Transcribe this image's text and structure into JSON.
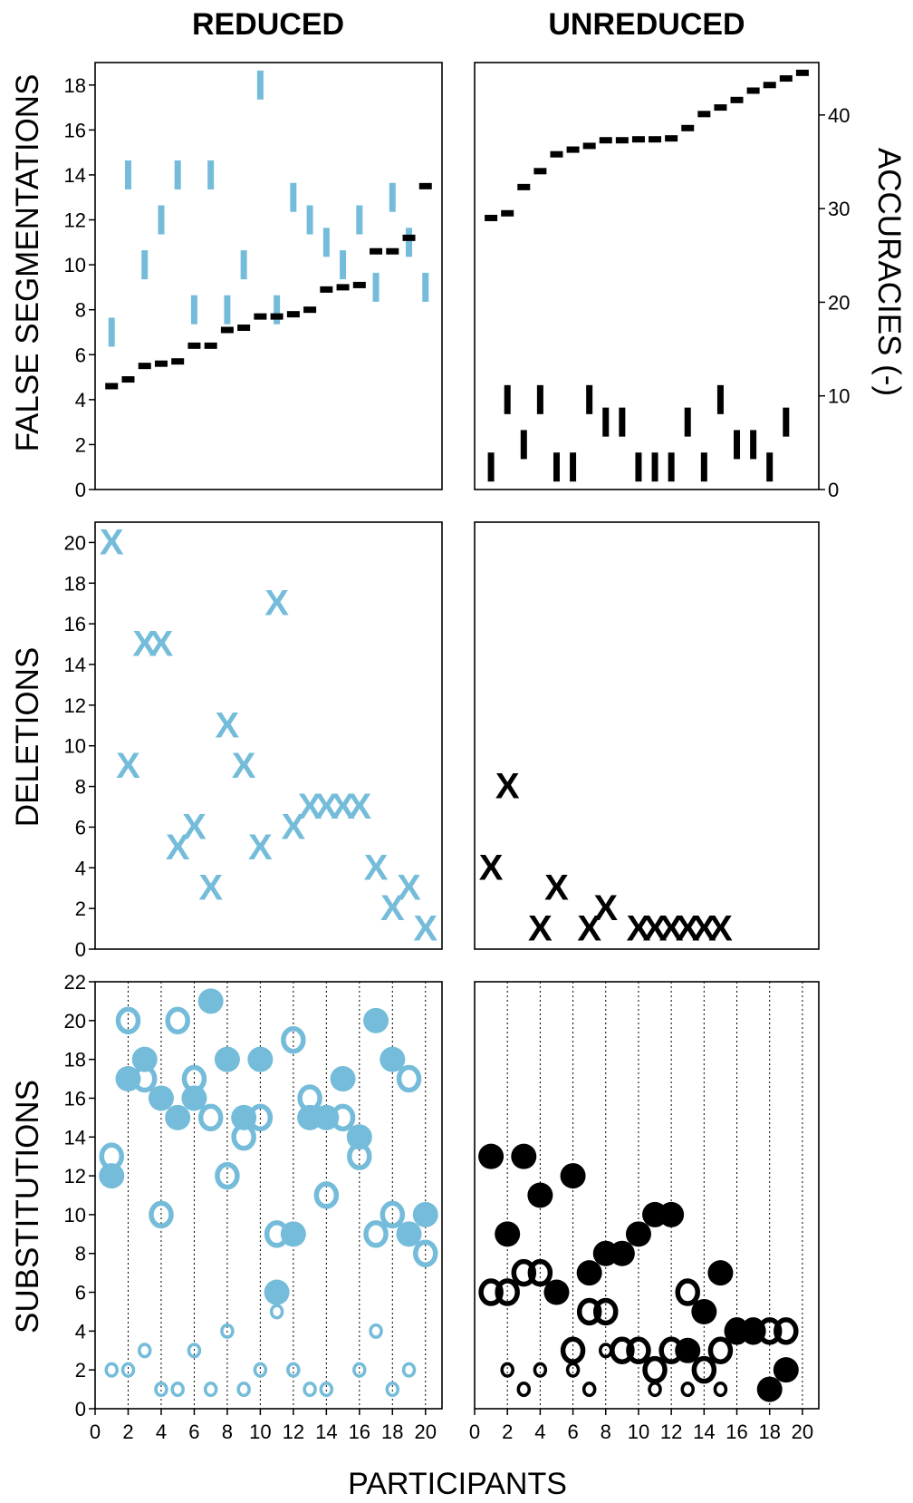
{
  "colors": {
    "reduced": "#74bcd9",
    "unreduced": "#000000",
    "axis": "#000000"
  },
  "titles": {
    "left": "REDUCED",
    "right": "UNREDUCED"
  },
  "x_axis": {
    "label": "PARTICIPANTS",
    "ticks": [
      "0",
      "2",
      "4",
      "6",
      "8",
      "10",
      "12",
      "14",
      "16",
      "18",
      "20"
    ]
  },
  "panels": {
    "row1": {
      "ylabel": "FALSE SEGMENTATIONS",
      "left_ticks": [
        "0",
        "2",
        "4",
        "6",
        "8",
        "10",
        "12",
        "14",
        "16",
        "18"
      ]
    },
    "row1_right": {
      "ylabel": "ACCURACIES (-)",
      "ticks": [
        "0",
        "10",
        "20",
        "30",
        "40"
      ]
    },
    "row2": {
      "ylabel": "DELETIONS",
      "ticks": [
        "0",
        "2",
        "4",
        "6",
        "8",
        "10",
        "12",
        "14",
        "16",
        "18",
        "20"
      ]
    },
    "row3": {
      "ylabel": "SUBSTITUTIONS",
      "ticks": [
        "0",
        "2",
        "4",
        "6",
        "8",
        "10",
        "12",
        "14",
        "16",
        "18",
        "20",
        "22"
      ]
    }
  },
  "chart_data": [
    {
      "type": "scatter",
      "panel": "reduced-false-segmentations",
      "xlim": [
        0,
        21
      ],
      "ylim": [
        0,
        19
      ],
      "ylabel": "FALSE SEGMENTATIONS",
      "bars_marker": "|",
      "bars": [
        [
          1,
          7
        ],
        [
          2,
          14
        ],
        [
          3,
          10
        ],
        [
          4,
          12
        ],
        [
          5,
          14
        ],
        [
          6,
          8
        ],
        [
          7,
          14
        ],
        [
          8,
          8
        ],
        [
          9,
          10
        ],
        [
          10,
          18
        ],
        [
          11,
          8
        ],
        [
          12,
          13
        ],
        [
          13,
          12
        ],
        [
          14,
          11
        ],
        [
          15,
          10
        ],
        [
          16,
          12
        ],
        [
          17,
          9
        ],
        [
          18,
          13
        ],
        [
          19,
          11
        ],
        [
          20,
          9
        ]
      ],
      "accuracy_marker": "-",
      "accuracy": [
        [
          1,
          4.6
        ],
        [
          2,
          4.9
        ],
        [
          3,
          5.5
        ],
        [
          4,
          5.6
        ],
        [
          5,
          5.7
        ],
        [
          6,
          6.4
        ],
        [
          7,
          6.4
        ],
        [
          8,
          7.1
        ],
        [
          9,
          7.2
        ],
        [
          10,
          7.7
        ],
        [
          11,
          7.7
        ],
        [
          12,
          7.8
        ],
        [
          13,
          8.0
        ],
        [
          14,
          8.9
        ],
        [
          15,
          9.0
        ],
        [
          16,
          9.1
        ],
        [
          17,
          10.6
        ],
        [
          18,
          10.6
        ],
        [
          19,
          11.2
        ],
        [
          20,
          13.5
        ]
      ]
    },
    {
      "type": "scatter",
      "panel": "unreduced-false-segmentations",
      "xlim": [
        0,
        21
      ],
      "ylim": [
        0,
        19
      ],
      "y2label": "ACCURACIES (-)",
      "y2lim": [
        0,
        45.6
      ],
      "bars_marker": "|",
      "bars": [
        [
          1,
          1
        ],
        [
          2,
          4
        ],
        [
          3,
          2
        ],
        [
          4,
          4
        ],
        [
          5,
          1
        ],
        [
          6,
          1
        ],
        [
          7,
          4
        ],
        [
          8,
          3
        ],
        [
          9,
          3
        ],
        [
          10,
          1
        ],
        [
          11,
          1
        ],
        [
          12,
          1
        ],
        [
          13,
          3
        ],
        [
          14,
          1
        ],
        [
          15,
          4
        ],
        [
          16,
          2
        ],
        [
          17,
          2
        ],
        [
          18,
          1
        ],
        [
          19,
          3
        ]
      ],
      "accuracy_marker": "-",
      "accuracy": [
        [
          1,
          29
        ],
        [
          2,
          29.5
        ],
        [
          3,
          32.3
        ],
        [
          4,
          34
        ],
        [
          5,
          35.8
        ],
        [
          6,
          36.3
        ],
        [
          7,
          36.7
        ],
        [
          8,
          37.3
        ],
        [
          9,
          37.3
        ],
        [
          10,
          37.4
        ],
        [
          11,
          37.4
        ],
        [
          12,
          37.5
        ],
        [
          13,
          38.6
        ],
        [
          14,
          40.1
        ],
        [
          15,
          40.8
        ],
        [
          16,
          41.6
        ],
        [
          17,
          42.6
        ],
        [
          18,
          43.2
        ],
        [
          19,
          43.9
        ],
        [
          20,
          44.5
        ]
      ]
    },
    {
      "type": "scatter",
      "panel": "reduced-deletions",
      "xlim": [
        0,
        21
      ],
      "ylim": [
        0,
        21
      ],
      "ylabel": "DELETIONS",
      "marker": "X",
      "points": [
        [
          1,
          20
        ],
        [
          2,
          9
        ],
        [
          3,
          15
        ],
        [
          4,
          15
        ],
        [
          5,
          5
        ],
        [
          6,
          6
        ],
        [
          7,
          3
        ],
        [
          8,
          11
        ],
        [
          9,
          9
        ],
        [
          10,
          5
        ],
        [
          11,
          17
        ],
        [
          12,
          6
        ],
        [
          13,
          7
        ],
        [
          14,
          7
        ],
        [
          15,
          7
        ],
        [
          16,
          7
        ],
        [
          17,
          4
        ],
        [
          18,
          2
        ],
        [
          19,
          3
        ],
        [
          20,
          1
        ]
      ]
    },
    {
      "type": "scatter",
      "panel": "unreduced-deletions",
      "xlim": [
        0,
        21
      ],
      "ylim": [
        0,
        21
      ],
      "marker": "X",
      "points": [
        [
          1,
          4
        ],
        [
          2,
          8
        ],
        [
          4,
          1
        ],
        [
          5,
          3
        ],
        [
          7,
          1
        ],
        [
          8,
          2
        ],
        [
          10,
          1
        ],
        [
          11,
          1
        ],
        [
          12,
          1
        ],
        [
          13,
          1
        ],
        [
          14,
          1
        ],
        [
          15,
          1
        ]
      ]
    },
    {
      "type": "scatter",
      "panel": "reduced-substitutions",
      "xlim": [
        0,
        21
      ],
      "ylim": [
        0,
        22
      ],
      "ylabel": "SUBSTITUTIONS",
      "marker": "O",
      "filled": [
        [
          1,
          12
        ],
        [
          2,
          17
        ],
        [
          3,
          18
        ],
        [
          4,
          16
        ],
        [
          5,
          15
        ],
        [
          6,
          16
        ],
        [
          7,
          21
        ],
        [
          8,
          18
        ],
        [
          9,
          15
        ],
        [
          10,
          18
        ],
        [
          11,
          6
        ],
        [
          12,
          9
        ],
        [
          13,
          15
        ],
        [
          14,
          15
        ],
        [
          15,
          17
        ],
        [
          16,
          14
        ],
        [
          17,
          20
        ],
        [
          18,
          18
        ],
        [
          19,
          9
        ],
        [
          20,
          10
        ]
      ],
      "open_large": [
        [
          1,
          13
        ],
        [
          2,
          20
        ],
        [
          3,
          17
        ],
        [
          4,
          10
        ],
        [
          5,
          20
        ],
        [
          6,
          17
        ],
        [
          7,
          15
        ],
        [
          8,
          12
        ],
        [
          9,
          14
        ],
        [
          10,
          15
        ],
        [
          11,
          9
        ],
        [
          12,
          19
        ],
        [
          13,
          16
        ],
        [
          14,
          11
        ],
        [
          15,
          15
        ],
        [
          16,
          13
        ],
        [
          17,
          9
        ],
        [
          18,
          10
        ],
        [
          19,
          17
        ],
        [
          20,
          8
        ]
      ],
      "open_small": [
        [
          1,
          2
        ],
        [
          2,
          2
        ],
        [
          3,
          3
        ],
        [
          4,
          1
        ],
        [
          5,
          1
        ],
        [
          6,
          3
        ],
        [
          7,
          1
        ],
        [
          8,
          4
        ],
        [
          9,
          1
        ],
        [
          10,
          2
        ],
        [
          11,
          5
        ],
        [
          12,
          2
        ],
        [
          13,
          1
        ],
        [
          14,
          1
        ],
        [
          16,
          2
        ],
        [
          17,
          4
        ],
        [
          18,
          1
        ],
        [
          19,
          2
        ]
      ]
    },
    {
      "type": "scatter",
      "panel": "unreduced-substitutions",
      "xlim": [
        0,
        21
      ],
      "ylim": [
        0,
        22
      ],
      "marker": "O",
      "filled": [
        [
          1,
          13
        ],
        [
          2,
          9
        ],
        [
          3,
          13
        ],
        [
          4,
          11
        ],
        [
          5,
          6
        ],
        [
          6,
          12
        ],
        [
          7,
          7
        ],
        [
          8,
          8
        ],
        [
          9,
          8
        ],
        [
          10,
          9
        ],
        [
          11,
          10
        ],
        [
          12,
          10
        ],
        [
          13,
          3
        ],
        [
          14,
          5
        ],
        [
          15,
          7
        ],
        [
          16,
          4
        ],
        [
          17,
          4
        ],
        [
          18,
          1
        ],
        [
          19,
          2
        ]
      ],
      "open_large": [
        [
          1,
          6
        ],
        [
          2,
          6
        ],
        [
          3,
          7
        ],
        [
          4,
          7
        ],
        [
          6,
          3
        ],
        [
          7,
          5
        ],
        [
          8,
          5
        ],
        [
          9,
          3
        ],
        [
          10,
          3
        ],
        [
          11,
          2
        ],
        [
          12,
          3
        ],
        [
          13,
          6
        ],
        [
          14,
          2
        ],
        [
          15,
          3
        ],
        [
          16,
          4
        ],
        [
          17,
          4
        ],
        [
          18,
          4
        ],
        [
          19,
          4
        ]
      ],
      "open_small": [
        [
          2,
          2
        ],
        [
          3,
          1
        ],
        [
          4,
          2
        ],
        [
          6,
          2
        ],
        [
          7,
          1
        ],
        [
          8,
          3
        ],
        [
          11,
          1
        ],
        [
          13,
          1
        ],
        [
          15,
          1
        ]
      ]
    }
  ]
}
